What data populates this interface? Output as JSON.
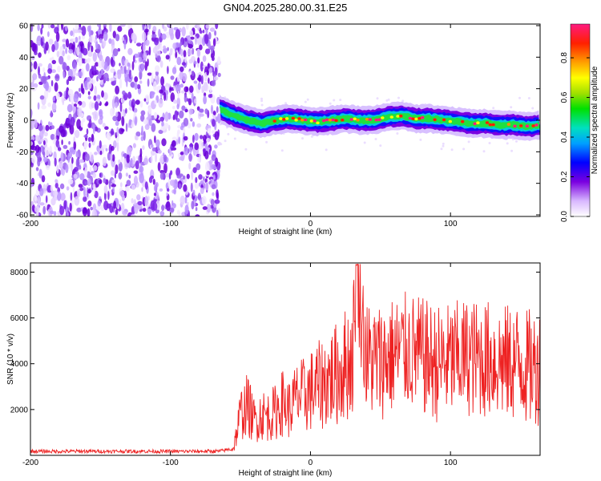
{
  "chart_data": [
    {
      "type": "heatmap",
      "title": "GN04.2025.280.00.31.E25",
      "xlabel": "Height of straight line (km)",
      "ylabel": "Frequency (Hz)",
      "xlim": [
        -200,
        164
      ],
      "ylim": [
        -61,
        61
      ],
      "x_ticks": [
        -200,
        -100,
        0,
        100
      ],
      "y_ticks": [
        60,
        40,
        20,
        0,
        -20,
        -40,
        -60
      ],
      "noise_region_x": [
        -200,
        -65
      ],
      "signal_track": {
        "x": [
          -65,
          -55,
          -45,
          -35,
          -25,
          -15,
          -5,
          5,
          15,
          25,
          35,
          45,
          55,
          65,
          75,
          85,
          95,
          105,
          115,
          125,
          135,
          145,
          155,
          164
        ],
        "frequency": [
          7,
          3,
          0,
          -2,
          0,
          1,
          0,
          -1,
          0,
          1,
          0,
          0,
          2,
          3,
          1,
          1,
          0,
          -1,
          -2,
          -2,
          -3,
          -3,
          -4,
          -3
        ]
      },
      "colorbar": {
        "label": "Normalized spectral amplitude",
        "range": [
          0.0,
          0.97
        ],
        "ticks": [
          "0.0",
          "0.2",
          "0.4",
          "0.6",
          "0.8"
        ],
        "tick_values": [
          0.0,
          0.2,
          0.4,
          0.6,
          0.8
        ],
        "colormap": "rainbow (white-purple-blue-cyan-green-yellow-orange-red-pink)"
      },
      "grid": false
    },
    {
      "type": "line",
      "xlabel": "Height of straight line (km)",
      "ylabel": "SNR (10 * v/v)",
      "xlim": [
        -200,
        164
      ],
      "ylim": [
        0,
        8400
      ],
      "x_ticks": [
        -200,
        -100,
        0,
        100
      ],
      "y_ticks": [
        2000,
        4000,
        6000,
        8000
      ],
      "color": "#ee2222",
      "series": [
        {
          "x": [
            -200,
            -180,
            -160,
            -140,
            -120,
            -100,
            -80,
            -65,
            -55,
            -50,
            -45,
            -40,
            -35,
            -30,
            -25,
            -20,
            -15,
            -10,
            -5,
            0,
            10,
            20,
            30,
            33,
            40,
            50,
            60,
            70,
            80,
            90,
            100,
            110,
            120,
            130,
            140,
            150,
            155,
            164
          ],
          "y": [
            180,
            170,
            180,
            175,
            180,
            170,
            175,
            180,
            300,
            1800,
            2200,
            1500,
            1800,
            1700,
            1900,
            2300,
            2000,
            2500,
            2600,
            2800,
            3200,
            3600,
            4300,
            8300,
            4200,
            4100,
            4400,
            4600,
            4300,
            4000,
            4100,
            4300,
            4200,
            4200,
            4000,
            4100,
            3800,
            3900
          ]
        }
      ],
      "grid": false
    }
  ]
}
